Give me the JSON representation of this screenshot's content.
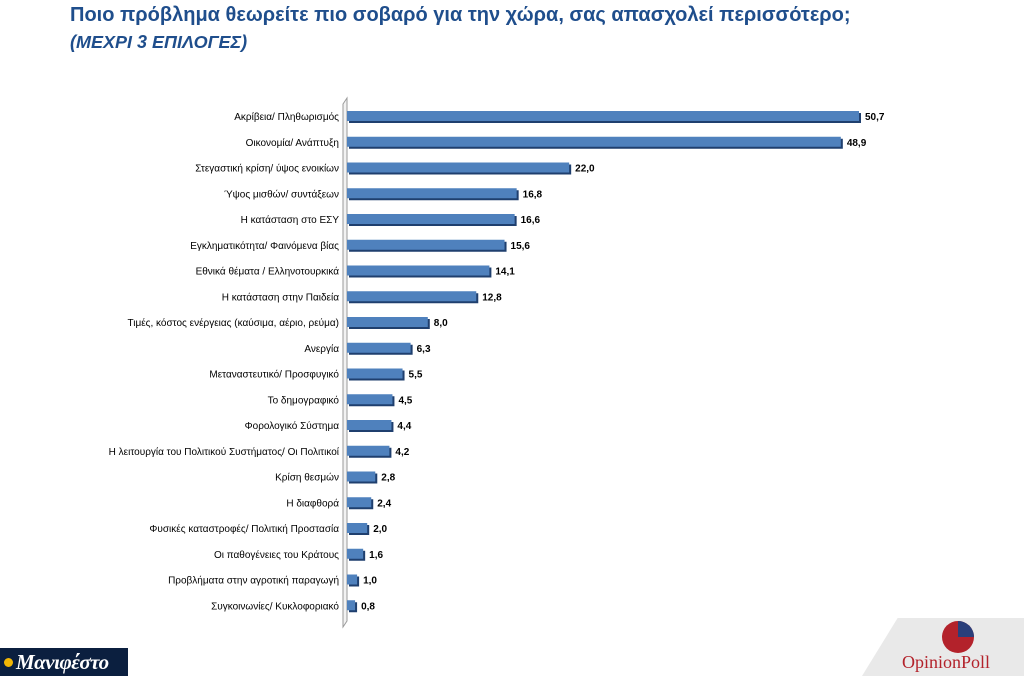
{
  "header": {
    "title": "Ποιο πρόβλημα θεωρείτε πιο σοβαρό για την χώρα, σας απασχολεί περισσότερο;",
    "subtitle": "(ΜΕΧΡΙ 3 ΕΠΙΛΟΓΕΣ)"
  },
  "chart_data": {
    "type": "bar",
    "orientation": "horizontal",
    "title": "Ποιο πρόβλημα θεωρείτε πιο σοβαρό για την χώρα, σας απασχολεί περισσότερο;",
    "subtitle": "(ΜΕΧΡΙ 3 ΕΠΙΛΟΓΕΣ)",
    "categories": [
      "Ακρίβεια/ Πληθωρισμός",
      "Οικονομία/ Ανάπτυξη",
      "Στεγαστική κρίση/ ύψος ενοικίων",
      "Ύψος μισθών/ συντάξεων",
      "Η κατάσταση στο ΕΣΥ",
      "Εγκληματικότητα/ Φαινόμενα βίας",
      "Εθνικά θέματα / Ελληνοτουρκικά",
      "Η κατάσταση στην Παιδεία",
      "Τιμές, κόστος ενέργειας (καύσιμα, αέριο, ρεύμα)",
      "Ανεργία",
      "Μεταναστευτικό/ Προσφυγικό",
      "Το δημογραφικό",
      "Φορολογικό Σύστημα",
      "Η λειτουργία του Πολιτικού Συστήματος/ Οι Πολιτικοί",
      "Κρίση θεσμών",
      "Η διαφθορά",
      "Φυσικές καταστροφές/ Πολιτική Προστασία",
      "Οι παθογένειες του Κράτους",
      "Προβλήματα στην αγροτική παραγωγή",
      "Συγκοινωνίες/ Κυκλοφοριακό"
    ],
    "values": [
      50.7,
      48.9,
      22.0,
      16.8,
      16.6,
      15.6,
      14.1,
      12.8,
      8.0,
      6.3,
      5.5,
      4.5,
      4.4,
      4.2,
      2.8,
      2.4,
      2.0,
      1.6,
      1.0,
      0.8
    ],
    "value_labels": [
      "50,7",
      "48,9",
      "22,0",
      "16,8",
      "16,6",
      "15,6",
      "14,1",
      "12,8",
      "8,0",
      "6,3",
      "5,5",
      "4,5",
      "4,4",
      "4,2",
      "2,8",
      "2,4",
      "2,0",
      "1,6",
      "1,0",
      "0,8"
    ],
    "xlim": [
      0,
      50.7
    ],
    "grid": false,
    "legend": "none",
    "bar_color": "#4f81bd",
    "bar_shadow_color": "#1f3f6e"
  },
  "branding": {
    "left_logo_text": "Μανιφέστο",
    "right_logo_text": "OpinionPoll",
    "right_logo_color": "#b3222b",
    "right_logo_accent": "#2a3f7a"
  }
}
